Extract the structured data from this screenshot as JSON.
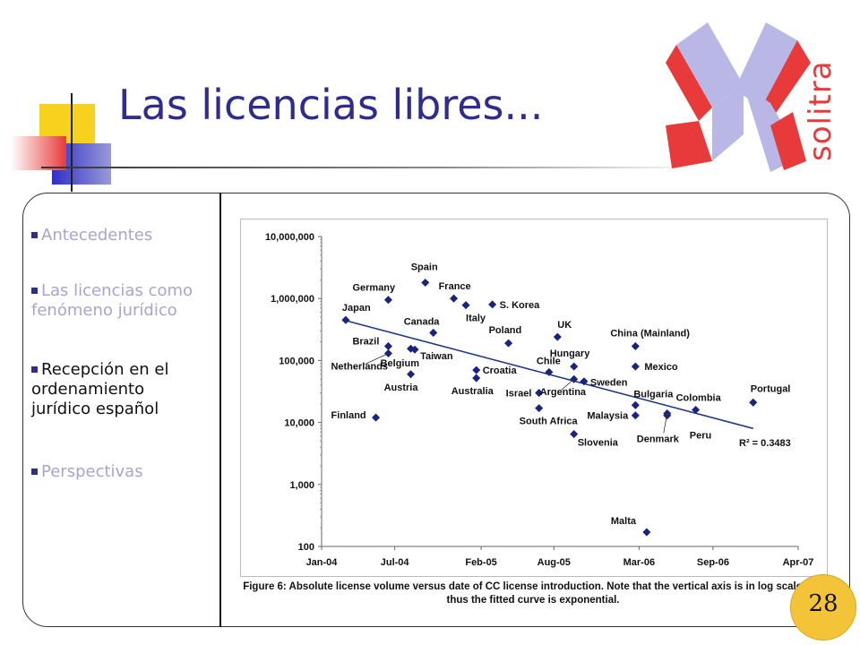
{
  "slide": {
    "title": "Las licencias libres...",
    "logo_text": "solitra",
    "page_number": "28",
    "colors": {
      "title": "#2e2c8c",
      "accent_red": "#e83a3a",
      "accent_yellow": "#f6d21e",
      "accent_blue": "#3a3ad0",
      "nav_dim": "#a9a4cf"
    }
  },
  "nav": [
    {
      "label": "Antecedentes",
      "active": false
    },
    {
      "label": "Las licencias como fenómeno jurídico",
      "active": false
    },
    {
      "label": "Recepción en el ordenamiento jurídico español",
      "active": true
    },
    {
      "label": "Perspectivas",
      "active": false
    }
  ],
  "figure_caption": "Figure 6: Absolute license volume versus date of CC license introduction. Note that the vertical axis is in log scale and thus the fitted curve is exponential.",
  "chart_data": {
    "type": "scatter",
    "x_scale": "date",
    "y_scale": "log",
    "ylim": [
      100,
      10000000
    ],
    "xlim": [
      "2004-01-01",
      "2007-04-01"
    ],
    "x_ticks": [
      "Jan-04",
      "Jul-04",
      "Feb-05",
      "Aug-05",
      "Mar-06",
      "Sep-06",
      "Apr-07"
    ],
    "y_ticks": [
      "100",
      "1,000",
      "10,000",
      "100,000",
      "1,000,000",
      "10,000,000"
    ],
    "grid": false,
    "points": [
      {
        "label": "Japan",
        "x": "2004-03-01",
        "y": 450000
      },
      {
        "label": "Finland",
        "x": "2004-05-15",
        "y": 12000
      },
      {
        "label": "Brazil",
        "x": "2004-06-15",
        "y": 170000
      },
      {
        "label": "Netherlands",
        "x": "2004-06-15",
        "y": 130000
      },
      {
        "label": "Germany",
        "x": "2004-06-15",
        "y": 950000
      },
      {
        "label": "Belgium",
        "x": "2004-08-10",
        "y": 155000
      },
      {
        "label": "Austria",
        "x": "2004-08-10",
        "y": 60000
      },
      {
        "label": "Taiwan",
        "x": "2004-08-20",
        "y": 150000
      },
      {
        "label": "Spain",
        "x": "2004-09-15",
        "y": 1800000
      },
      {
        "label": "Canada",
        "x": "2004-10-05",
        "y": 280000
      },
      {
        "label": "France",
        "x": "2004-11-25",
        "y": 1000000
      },
      {
        "label": "Italy",
        "x": "2004-12-25",
        "y": 780000
      },
      {
        "label": "Croatia",
        "x": "2005-01-20",
        "y": 70000
      },
      {
        "label": "Australia",
        "x": "2005-01-20",
        "y": 52000
      },
      {
        "label": "S. Korea",
        "x": "2005-03-01",
        "y": 800000
      },
      {
        "label": "Poland",
        "x": "2005-04-10",
        "y": 190000
      },
      {
        "label": "Israel",
        "x": "2005-06-25",
        "y": 30000
      },
      {
        "label": "South Africa",
        "x": "2005-06-25",
        "y": 17000
      },
      {
        "label": "Chile",
        "x": "2005-07-20",
        "y": 65000
      },
      {
        "label": "UK",
        "x": "2005-08-10",
        "y": 240000
      },
      {
        "label": "Hungary",
        "x": "2005-09-20",
        "y": 80000
      },
      {
        "label": "Argentina",
        "x": "2005-09-20",
        "y": 50000
      },
      {
        "label": "Slovenia",
        "x": "2005-09-20",
        "y": 6500
      },
      {
        "label": "Sweden",
        "x": "2005-10-15",
        "y": 46000
      },
      {
        "label": "China (Mainland)",
        "x": "2006-02-20",
        "y": 170000
      },
      {
        "label": "Mexico",
        "x": "2006-02-20",
        "y": 80000
      },
      {
        "label": "Bulgaria",
        "x": "2006-02-20",
        "y": 19000
      },
      {
        "label": "Malaysia",
        "x": "2006-02-20",
        "y": 13000
      },
      {
        "label": "Malta",
        "x": "2006-03-20",
        "y": 170
      },
      {
        "label": "Denmark",
        "x": "2006-05-10",
        "y": 14000
      },
      {
        "label": "Peru",
        "x": "2006-05-10",
        "y": 13000
      },
      {
        "label": "Colombia",
        "x": "2006-07-20",
        "y": 16000
      },
      {
        "label": "Portugal",
        "x": "2006-12-10",
        "y": 21000
      }
    ],
    "trendline": {
      "from": {
        "x": "2004-03-01",
        "y": 440000
      },
      "to": {
        "x": "2006-12-10",
        "y": 8000
      }
    },
    "annotation": "R² = 0.3483"
  }
}
